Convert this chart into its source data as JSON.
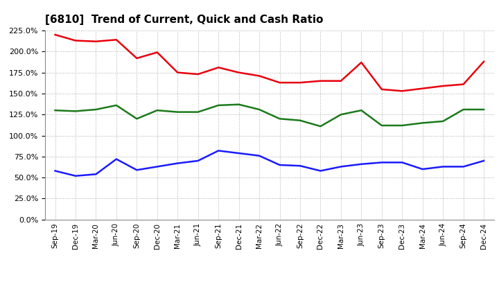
{
  "title": "[6810]  Trend of Current, Quick and Cash Ratio",
  "labels": [
    "Sep-19",
    "Dec-19",
    "Mar-20",
    "Jun-20",
    "Sep-20",
    "Dec-20",
    "Mar-21",
    "Jun-21",
    "Sep-21",
    "Dec-21",
    "Mar-22",
    "Jun-22",
    "Sep-22",
    "Dec-22",
    "Mar-23",
    "Jun-23",
    "Sep-23",
    "Dec-23",
    "Mar-24",
    "Jun-24",
    "Sep-24",
    "Dec-24"
  ],
  "current_ratio": [
    220,
    213,
    212,
    214,
    192,
    199,
    175,
    173,
    181,
    175,
    171,
    163,
    163,
    165,
    165,
    187,
    155,
    153,
    156,
    159,
    161,
    188
  ],
  "quick_ratio": [
    130,
    129,
    131,
    136,
    120,
    130,
    128,
    128,
    136,
    137,
    131,
    120,
    118,
    111,
    125,
    130,
    112,
    112,
    115,
    117,
    131,
    131
  ],
  "cash_ratio": [
    58,
    52,
    54,
    72,
    59,
    63,
    67,
    70,
    82,
    79,
    76,
    65,
    64,
    58,
    63,
    66,
    68,
    68,
    60,
    63,
    63,
    70
  ],
  "current_color": "#e8000d",
  "quick_color": "#1a7a1a",
  "cash_color": "#1a1aff",
  "ylim": [
    0,
    225
  ],
  "yticks": [
    0,
    25,
    50,
    75,
    100,
    125,
    150,
    175,
    200,
    225
  ],
  "background_color": "#ffffff",
  "grid_color": "#aaaaaa",
  "line_width": 1.8
}
